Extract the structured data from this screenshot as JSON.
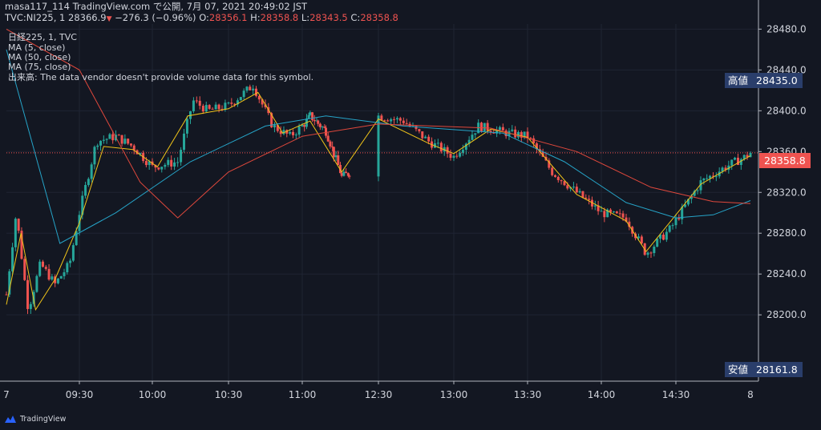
{
  "header": {
    "line1": "masa117_114 TradingView.com で公開, 7月 07, 2021 20:49:02 JST",
    "symbol": "TVC:NI225, 1",
    "last": "28366.9",
    "change": "−276.3 (−0.96%)",
    "o_label": "O:",
    "o": "28356.1",
    "h_label": "H:",
    "h": "28358.8",
    "l_label": "L:",
    "l": "28343.5",
    "c_label": "C:",
    "c": "28358.8"
  },
  "legend": {
    "title": "日経225, 1, TVC",
    "ma5": "MA (5, close)",
    "ma50": "MA (50, close)",
    "ma75": "MA (75, close)",
    "volume": "出来高: The data vendor doesn't provide volume data for this symbol."
  },
  "badges": {
    "high_label": "高値",
    "high_value": "28435.0",
    "last_value": "28358.8",
    "low_label": "安値",
    "low_value": "28161.8"
  },
  "colors": {
    "background": "#131722",
    "up": "#26a69a",
    "down": "#ef5350",
    "ma5": "#f0c419",
    "ma50": "#26a4c8",
    "ma75": "#e0483c",
    "badge": "#2a3e6b"
  },
  "branding": {
    "logo_text": "TradingView",
    "icon": "tradingview-cloud-icon"
  },
  "chart_data": {
    "type": "line",
    "chart_style": "candlestick",
    "interval": "1 minute",
    "y_ticks": [
      28480,
      28440,
      28400,
      28360,
      28320,
      28280,
      28240,
      28200
    ],
    "y_tick_labels": [
      "28480.0",
      "28440.0",
      "28400.0",
      "28360.0",
      "28320.0",
      "28280.0",
      "28240.0",
      "28200.0"
    ],
    "ylim": [
      28135,
      28485
    ],
    "x_range": [
      "09:00",
      "15:00"
    ],
    "x_ticks": [
      "09:30",
      "10:00",
      "10:30",
      "11:00",
      "12:30",
      "13:00",
      "13:30",
      "14:00",
      "14:30"
    ],
    "x_edge_left": "7",
    "x_edge_right": "8",
    "grid": true,
    "legend_position": "top-left",
    "price_path": [
      {
        "t": "09:00",
        "v": 28220
      },
      {
        "t": "09:04",
        "v": 28300
      },
      {
        "t": "09:09",
        "v": 28205
      },
      {
        "t": "09:14",
        "v": 28250
      },
      {
        "t": "09:20",
        "v": 28230
      },
      {
        "t": "09:26",
        "v": 28250
      },
      {
        "t": "09:30",
        "v": 28300
      },
      {
        "t": "09:37",
        "v": 28370
      },
      {
        "t": "09:45",
        "v": 28375
      },
      {
        "t": "09:52",
        "v": 28365
      },
      {
        "t": "10:00",
        "v": 28345
      },
      {
        "t": "10:10",
        "v": 28350
      },
      {
        "t": "10:16",
        "v": 28410
      },
      {
        "t": "10:22",
        "v": 28400
      },
      {
        "t": "10:30",
        "v": 28405
      },
      {
        "t": "10:40",
        "v": 28425
      },
      {
        "t": "10:48",
        "v": 28385
      },
      {
        "t": "10:55",
        "v": 28375
      },
      {
        "t": "11:05",
        "v": 28395
      },
      {
        "t": "11:15",
        "v": 28380
      },
      {
        "t": "11:25",
        "v": 28335
      },
      {
        "t": "12:30",
        "v": 28395
      },
      {
        "t": "12:40",
        "v": 28390
      },
      {
        "t": "12:50",
        "v": 28370
      },
      {
        "t": "13:00",
        "v": 28355
      },
      {
        "t": "13:10",
        "v": 28385
      },
      {
        "t": "13:22",
        "v": 28378
      },
      {
        "t": "13:30",
        "v": 28375
      },
      {
        "t": "13:40",
        "v": 28340
      },
      {
        "t": "13:50",
        "v": 28320
      },
      {
        "t": "14:00",
        "v": 28300
      },
      {
        "t": "14:10",
        "v": 28295
      },
      {
        "t": "14:18",
        "v": 28260
      },
      {
        "t": "14:28",
        "v": 28285
      },
      {
        "t": "14:40",
        "v": 28330
      },
      {
        "t": "14:50",
        "v": 28345
      },
      {
        "t": "14:58",
        "v": 28355
      },
      {
        "t": "15:00",
        "v": 28358.8
      }
    ],
    "series": [
      {
        "name": "MA (5, close)",
        "values": [
          {
            "t": "09:00",
            "v": 28210
          },
          {
            "t": "09:06",
            "v": 28280
          },
          {
            "t": "09:12",
            "v": 28205
          },
          {
            "t": "09:20",
            "v": 28235
          },
          {
            "t": "09:30",
            "v": 28290
          },
          {
            "t": "09:40",
            "v": 28365
          },
          {
            "t": "09:52",
            "v": 28362
          },
          {
            "t": "10:02",
            "v": 28345
          },
          {
            "t": "10:14",
            "v": 28395
          },
          {
            "t": "10:30",
            "v": 28402
          },
          {
            "t": "10:42",
            "v": 28418
          },
          {
            "t": "10:52",
            "v": 28378
          },
          {
            "t": "11:05",
            "v": 28390
          },
          {
            "t": "11:25",
            "v": 28340
          },
          {
            "t": "12:30",
            "v": 28392
          },
          {
            "t": "12:50",
            "v": 28368
          },
          {
            "t": "13:00",
            "v": 28358
          },
          {
            "t": "13:15",
            "v": 28382
          },
          {
            "t": "13:30",
            "v": 28374
          },
          {
            "t": "13:50",
            "v": 28318
          },
          {
            "t": "14:10",
            "v": 28292
          },
          {
            "t": "14:18",
            "v": 28262
          },
          {
            "t": "14:40",
            "v": 28328
          },
          {
            "t": "15:00",
            "v": 28356
          }
        ]
      },
      {
        "name": "MA (50, close)",
        "values": [
          {
            "t": "09:00",
            "v": 28460
          },
          {
            "t": "09:22",
            "v": 28270
          },
          {
            "t": "09:45",
            "v": 28300
          },
          {
            "t": "10:15",
            "v": 28350
          },
          {
            "t": "10:45",
            "v": 28385
          },
          {
            "t": "11:15",
            "v": 28395
          },
          {
            "t": "12:40",
            "v": 28385
          },
          {
            "t": "13:20",
            "v": 28378
          },
          {
            "t": "13:45",
            "v": 28350
          },
          {
            "t": "14:10",
            "v": 28310
          },
          {
            "t": "14:30",
            "v": 28295
          },
          {
            "t": "14:45",
            "v": 28298
          },
          {
            "t": "15:00",
            "v": 28312
          }
        ]
      },
      {
        "name": "MA (75, close)",
        "values": [
          {
            "t": "09:00",
            "v": 28480
          },
          {
            "t": "09:30",
            "v": 28440
          },
          {
            "t": "09:55",
            "v": 28330
          },
          {
            "t": "10:10",
            "v": 28295
          },
          {
            "t": "10:30",
            "v": 28340
          },
          {
            "t": "11:00",
            "v": 28375
          },
          {
            "t": "12:30",
            "v": 28387
          },
          {
            "t": "13:15",
            "v": 28383
          },
          {
            "t": "13:50",
            "v": 28360
          },
          {
            "t": "14:20",
            "v": 28325
          },
          {
            "t": "14:45",
            "v": 28311
          },
          {
            "t": "15:00",
            "v": 28309
          }
        ]
      }
    ]
  }
}
